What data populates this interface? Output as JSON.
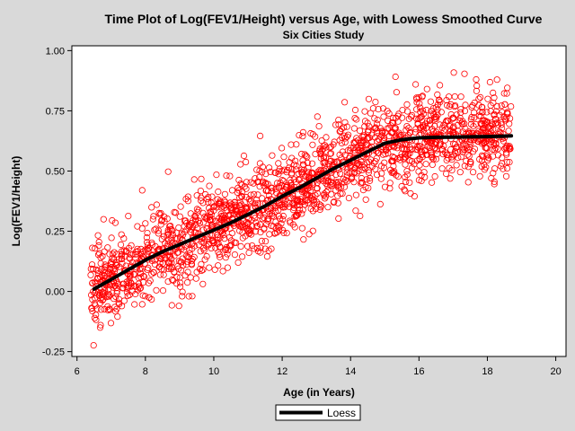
{
  "chart_data": {
    "type": "scatter",
    "title": "Time Plot of Log(FEV1/Height) versus Age, with Lowess Smoothed Curve",
    "subtitle": "Six Cities Study",
    "xlabel": "Age (in Years)",
    "ylabel": "Log(FEV1/Height)",
    "xlim": [
      5.85,
      20.3
    ],
    "ylim": [
      -0.27,
      1.02
    ],
    "xticks": [
      6,
      8,
      10,
      12,
      14,
      16,
      18,
      20
    ],
    "xtick_labels": [
      "6",
      "8",
      "10",
      "12",
      "14",
      "16",
      "18",
      "20"
    ],
    "yticks": [
      -0.25,
      0.0,
      0.25,
      0.5,
      0.75,
      1.0
    ],
    "ytick_labels": [
      "-0.25",
      "0.00",
      "0.25",
      "0.50",
      "0.75",
      "1.00"
    ],
    "grid": false,
    "legend_position": "bottom-center",
    "colors": {
      "background": "#d9d9d9",
      "plot_area": "#ffffff",
      "points": "#ff0000",
      "curve": "#000000"
    },
    "scatter_range": {
      "x": [
        6.4,
        18.7
      ]
    },
    "series": [
      {
        "name": "Loess",
        "type": "line",
        "x": [
          6.5,
          7.0,
          7.5,
          8.0,
          8.5,
          9.0,
          9.5,
          10.0,
          10.5,
          11.0,
          11.5,
          12.0,
          12.5,
          13.0,
          13.5,
          14.0,
          14.5,
          15.0,
          15.5,
          16.0,
          16.5,
          17.0,
          17.5,
          18.0,
          18.5,
          18.7
        ],
        "y": [
          0.01,
          0.05,
          0.09,
          0.13,
          0.165,
          0.195,
          0.225,
          0.255,
          0.285,
          0.32,
          0.355,
          0.395,
          0.43,
          0.47,
          0.51,
          0.545,
          0.58,
          0.615,
          0.63,
          0.638,
          0.64,
          0.641,
          0.642,
          0.643,
          0.645,
          0.646
        ]
      }
    ]
  }
}
